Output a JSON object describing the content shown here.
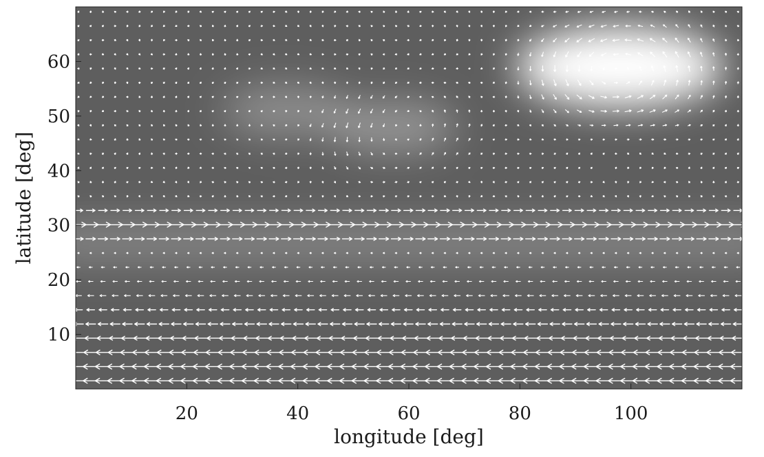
{
  "chart_data": {
    "type": "vector-field",
    "xlabel": "longitude [deg]",
    "ylabel": "latitude [deg]",
    "xlim": [
      0,
      120
    ],
    "ylim": [
      0,
      70
    ],
    "xticks": [
      20,
      40,
      60,
      80,
      100
    ],
    "yticks": [
      10,
      20,
      30,
      40,
      50,
      60
    ],
    "grid": false,
    "legend": "none",
    "colors": {
      "background_field": "#5e5e5e",
      "arrows": "#ffffff",
      "frame": "#000000"
    },
    "field_features": [
      {
        "kind": "bright-spot",
        "x": 98,
        "y": 59,
        "intensity": 1.0
      },
      {
        "kind": "bright-spot",
        "x": 57,
        "y": 48,
        "intensity": 0.35
      },
      {
        "kind": "bright-spot",
        "x": 38,
        "y": 51,
        "intensity": 0.3
      },
      {
        "kind": "bright-band",
        "y": 27,
        "intensity": 0.25
      }
    ],
    "flow": {
      "eastward_jet_lat": [
        27,
        33
      ],
      "westward_zone_lat": [
        2,
        24
      ],
      "vortices": [
        {
          "x": 98,
          "y": 58,
          "rotation": "counterclockwise",
          "strength": 1.0
        },
        {
          "x": 57,
          "y": 48,
          "rotation": "counterclockwise",
          "strength": 0.5
        },
        {
          "x": 40,
          "y": 50,
          "rotation": "clockwise",
          "strength": 0.35
        }
      ]
    }
  }
}
